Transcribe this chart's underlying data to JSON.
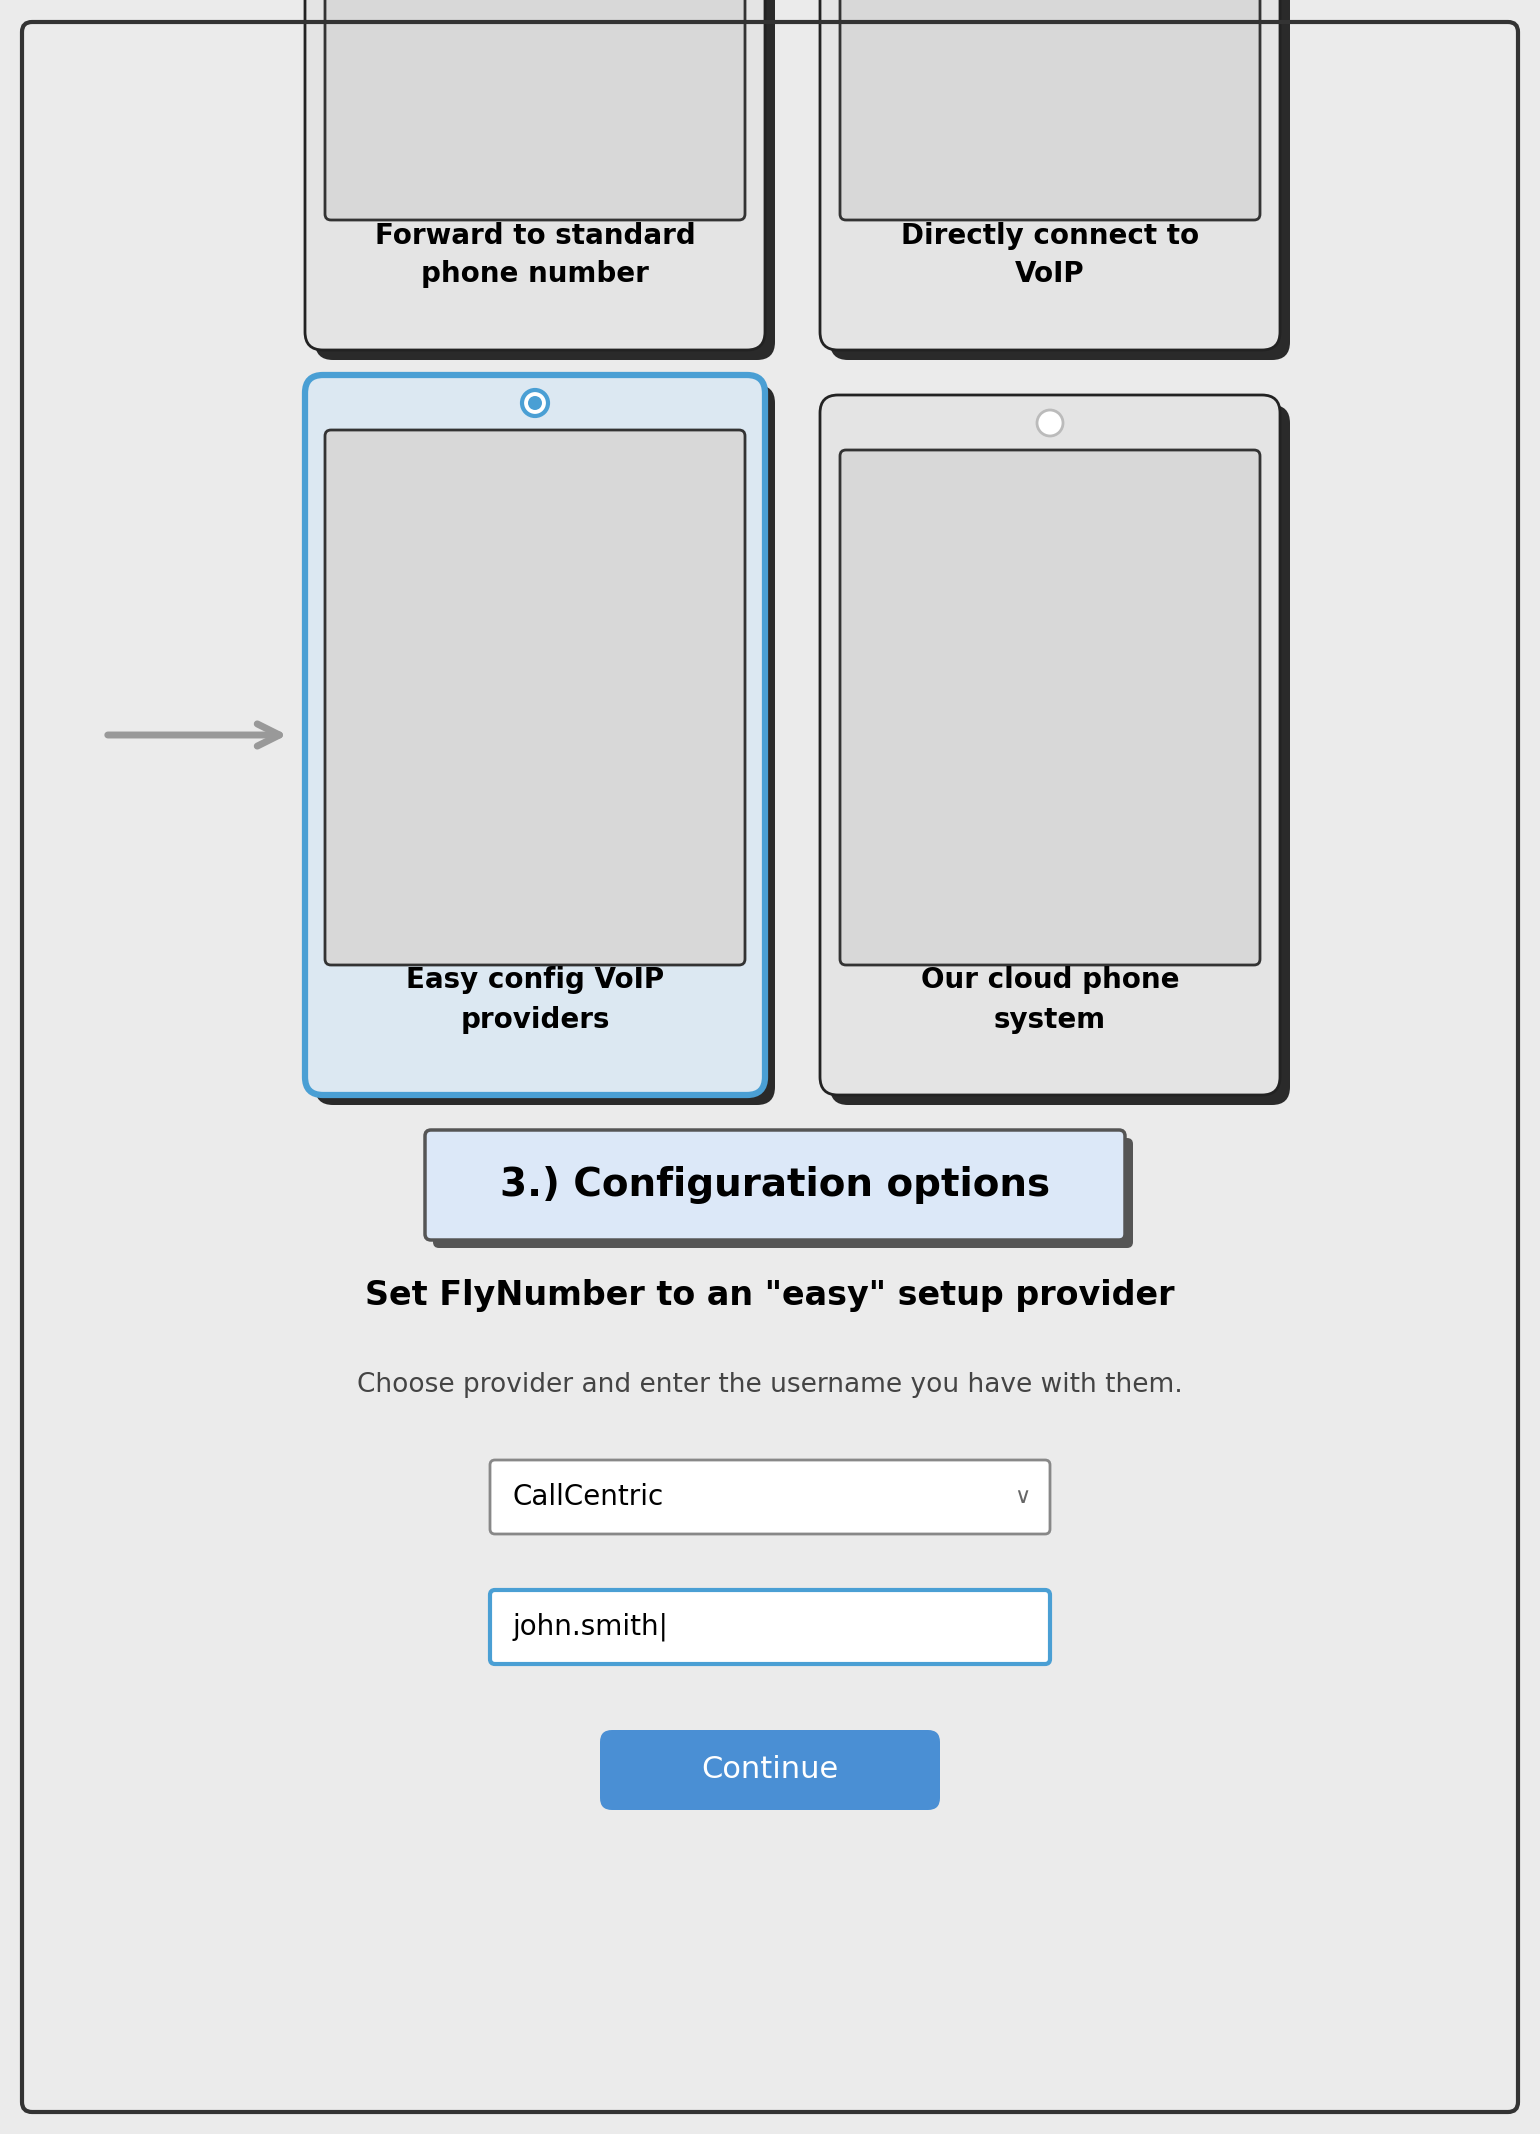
{
  "bg_color": "#ebebeb",
  "outer_border_color": "#333333",
  "card_bg": "#e4e4e4",
  "card_bg_selected": "#dce8f2",
  "card_border_color": "#222222",
  "card_border_selected": "#4a9fd4",
  "card_shadow": "#2a2a2a",
  "section_header_bg": "#dce8f8",
  "section_header_border": "#555555",
  "section_header_shadow": "#555555",
  "button_color": "#4a8fd4",
  "button_text": "Continue",
  "input_border": "#4a9fd4",
  "input_bg": "#ffffff",
  "dropdown_border": "#888888",
  "dropdown_bg": "#ffffff",
  "title_step": "3.) Configuration options",
  "title_main": "Set FlyNumber to an \"easy\" setup provider",
  "subtitle": "Choose provider and enter the username you have with them.",
  "dropdown_value": "CallCentric",
  "input_value": "john.smith|",
  "card1_label": "Forward to standard\nphone number",
  "card2_label": "Directly connect to\nVoIP",
  "card3_label": "Easy config VoIP\nproviders",
  "card4_label": "Our cloud phone\nsystem",
  "arrow_color": "#999999",
  "radio_selected_color": "#4a9fd4",
  "radio_unselected_color": "#bbbbbb",
  "img_bg": "#d8d8d8",
  "img_border": "#333333"
}
